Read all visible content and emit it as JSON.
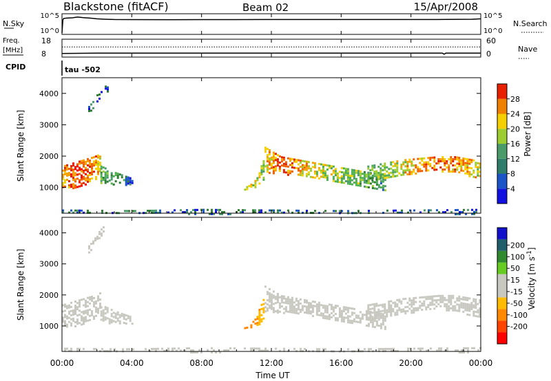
{
  "header": {
    "station": "Blackstone (fitACF)",
    "beam": "Beam 02",
    "date": "15/Apr/2008"
  },
  "noise_panel": {
    "left_label": "N.Sky",
    "left_top_tick": "10^5",
    "left_bottom_tick": "10^0",
    "right_label": "N.Search",
    "right_top_tick": "10^5",
    "right_bottom_tick": "10^0"
  },
  "freq_panel": {
    "left_label_1": "Freq.",
    "left_label_2": "[MHz]",
    "left_top_tick": "18",
    "left_bottom_tick": "8",
    "right_label": "Nave",
    "right_top_tick": "60",
    "right_bottom_tick": "0"
  },
  "cpid_panel": {
    "label": "CPID",
    "annotation": "tau -502"
  },
  "colors": {
    "power_scale": [
      "#1010e0",
      "#1a55c8",
      "#2e7d32",
      "#4a9a6a",
      "#4caf50",
      "#9ccc30",
      "#f4d000",
      "#f7a000",
      "#f06000",
      "#e02000",
      "#ff0000"
    ],
    "velocity_scale": [
      "#ff0000",
      "#ff4400",
      "#ff8800",
      "#ffbb00",
      "#c8c8c0",
      "#c8c8c0",
      "#66bb22",
      "#2f8a2f",
      "#1f5e6a",
      "#1111cc"
    ]
  },
  "chart_data": [
    {
      "type": "line",
      "name": "noise",
      "xlim": [
        0,
        24
      ],
      "y_scale": "log",
      "ylim": [
        1,
        100000
      ],
      "series": [
        {
          "name": "N.Sky",
          "style": "solid",
          "x": [
            0.0,
            0.05,
            0.1,
            0.3,
            0.6,
            0.9,
            1.2,
            1.5,
            1.8,
            2.0,
            2.5,
            3.0,
            4.0,
            6.0,
            8.0,
            10.0,
            12.0,
            14.0,
            16.0,
            18.0,
            20.0,
            22.0,
            23.5,
            24.0
          ],
          "y": [
            1,
            5000,
            12000,
            15000,
            18000,
            30000,
            20000,
            16000,
            12000,
            9000,
            7000,
            6000,
            5600,
            5500,
            5600,
            5700,
            5800,
            5800,
            5900,
            6000,
            5900,
            6200,
            7000,
            9000
          ]
        },
        {
          "name": "N.Search",
          "style": "dotted",
          "x": [],
          "y": []
        }
      ]
    },
    {
      "type": "line",
      "name": "frequency-nave",
      "xlim": [
        0,
        24
      ],
      "ylim_left": [
        8,
        18
      ],
      "ylim_right": [
        0,
        60
      ],
      "series": [
        {
          "name": "Freq.",
          "axis": "left",
          "style": "solid",
          "x": [
            0,
            2,
            4,
            6,
            8,
            10,
            12,
            14,
            16,
            18,
            20,
            21.8,
            21.9,
            22.0,
            24
          ],
          "y": [
            9.5,
            9.7,
            9.7,
            9.7,
            9.7,
            9.7,
            9.7,
            9.7,
            9.7,
            9.7,
            9.7,
            9.7,
            9.0,
            9.7,
            9.7
          ]
        },
        {
          "name": "Nave",
          "axis": "right",
          "style": "dotted",
          "x": [
            0,
            6,
            12,
            18,
            24
          ],
          "y": [
            35,
            35,
            35,
            35,
            35
          ]
        }
      ]
    },
    {
      "type": "heatmap",
      "name": "power",
      "ylabel": "Slant Range [km]",
      "xlim": [
        0,
        24
      ],
      "ylim": [
        180,
        4500
      ],
      "yticks": [
        1000,
        2000,
        3000,
        4000
      ],
      "colorbar_label": "Power [dB]",
      "colorbar_range": [
        0,
        32
      ],
      "colorbar_ticks": [
        4,
        8,
        12,
        16,
        20,
        24,
        28
      ],
      "features": [
        {
          "x": [
            0.0,
            0.6,
            1.2,
            1.8,
            2.2
          ],
          "y_low": [
            1000,
            1000,
            1100,
            1250,
            1400
          ],
          "y_high": [
            1700,
            1800,
            1900,
            2000,
            2100
          ],
          "power": [
            22,
            26,
            26,
            24,
            18
          ]
        },
        {
          "x": [
            2.2,
            2.6,
            3.0,
            3.5,
            4.0
          ],
          "y_low": [
            1100,
            1100,
            1100,
            1100,
            1100
          ],
          "y_high": [
            1700,
            1600,
            1500,
            1400,
            1300
          ],
          "power": [
            10,
            12,
            10,
            8,
            6
          ]
        },
        {
          "x": [
            1.5,
            1.8,
            2.0,
            2.3,
            2.6
          ],
          "y_low": [
            3400,
            3600,
            3800,
            4000,
            4100
          ],
          "y_high": [
            3600,
            3800,
            4000,
            4200,
            4300
          ],
          "power": [
            6,
            8,
            6,
            6,
            4
          ]
        },
        {
          "x": [
            10.2,
            10.6,
            11.0,
            11.3,
            11.6
          ],
          "y_low": [
            950,
            950,
            1000,
            1100,
            1300
          ],
          "y_high": [
            1000,
            1050,
            1200,
            1600,
            2000
          ],
          "power": [
            20,
            20,
            18,
            16,
            12
          ]
        },
        {
          "x": [
            11.6,
            12.5,
            13.5,
            14.5,
            15.5,
            16.5,
            17.5,
            18.5
          ],
          "y_low": [
            1500,
            1450,
            1400,
            1300,
            1200,
            1100,
            1000,
            900
          ],
          "y_high": [
            2300,
            2000,
            1900,
            1800,
            1700,
            1600,
            1500,
            1400
          ],
          "power": [
            20,
            24,
            22,
            18,
            16,
            14,
            12,
            10
          ]
        },
        {
          "x": [
            17.5,
            18.5,
            19.5,
            20.5,
            21.5,
            22.5,
            23.5,
            24.0
          ],
          "y_low": [
            1200,
            1300,
            1400,
            1500,
            1550,
            1500,
            1350,
            1250
          ],
          "y_high": [
            1700,
            1800,
            1900,
            1950,
            2000,
            2000,
            1900,
            1850
          ],
          "power": [
            12,
            14,
            18,
            22,
            24,
            22,
            20,
            18
          ]
        },
        {
          "x": [
            0.0,
            4.0,
            8.0,
            12.0,
            16.0,
            20.0,
            24.0
          ],
          "y_low": [
            180,
            180,
            180,
            180,
            180,
            180,
            180
          ],
          "y_high": [
            300,
            280,
            320,
            300,
            280,
            300,
            320
          ],
          "power": [
            6,
            6,
            6,
            6,
            6,
            6,
            6
          ]
        }
      ]
    },
    {
      "type": "heatmap",
      "name": "velocity",
      "xlabel": "Time UT",
      "ylabel": "Slant Range [km]",
      "xlim": [
        0,
        24
      ],
      "xticks": [
        "00:00",
        "04:00",
        "08:00",
        "12:00",
        "16:00",
        "20:00",
        "00:00"
      ],
      "ylim": [
        180,
        4500
      ],
      "yticks": [
        1000,
        2000,
        3000,
        4000
      ],
      "colorbar_label": "Velocity [m s^-1]",
      "colorbar_range": [
        -250,
        250
      ],
      "colorbar_ticks": [
        -200,
        -100,
        -50,
        -15,
        15,
        50,
        100,
        200
      ],
      "features": [
        {
          "x": [
            0.0,
            0.6,
            1.2,
            1.8,
            2.2
          ],
          "y_low": [
            1000,
            1000,
            1100,
            1250,
            1400
          ],
          "y_high": [
            1700,
            1800,
            1900,
            2000,
            2100
          ],
          "velocity": [
            0,
            0,
            5,
            0,
            0
          ]
        },
        {
          "x": [
            2.2,
            2.6,
            3.0,
            3.5,
            4.0
          ],
          "y_low": [
            1100,
            1100,
            1100,
            1100,
            1100
          ],
          "y_high": [
            1700,
            1600,
            1500,
            1400,
            1300
          ],
          "velocity": [
            0,
            0,
            0,
            0,
            0
          ]
        },
        {
          "x": [
            1.5,
            1.8,
            2.0,
            2.3,
            2.6
          ],
          "y_low": [
            3400,
            3600,
            3800,
            4000,
            4100
          ],
          "y_high": [
            3600,
            3800,
            4000,
            4200,
            4300
          ],
          "velocity": [
            0,
            0,
            0,
            0,
            0
          ]
        },
        {
          "x": [
            10.2,
            10.6,
            11.0,
            11.3,
            11.6
          ],
          "y_low": [
            950,
            950,
            1000,
            1100,
            1300
          ],
          "y_high": [
            1000,
            1050,
            1200,
            1600,
            2000
          ],
          "velocity": [
            -60,
            -70,
            -60,
            -40,
            -20
          ]
        },
        {
          "x": [
            11.6,
            12.5,
            13.5,
            14.5,
            15.5,
            16.5,
            17.5,
            18.5
          ],
          "y_low": [
            1500,
            1450,
            1400,
            1300,
            1200,
            1100,
            1000,
            900
          ],
          "y_high": [
            2300,
            2000,
            1900,
            1800,
            1700,
            1600,
            1500,
            1400
          ],
          "velocity": [
            0,
            0,
            0,
            0,
            0,
            0,
            0,
            0
          ]
        },
        {
          "x": [
            17.5,
            18.5,
            19.5,
            20.5,
            21.5,
            22.5,
            23.5,
            24.0
          ],
          "y_low": [
            1200,
            1300,
            1400,
            1500,
            1550,
            1500,
            1350,
            1250
          ],
          "y_high": [
            1700,
            1800,
            1900,
            1950,
            2000,
            2000,
            1900,
            1850
          ],
          "velocity": [
            0,
            0,
            0,
            0,
            0,
            0,
            0,
            0
          ]
        },
        {
          "x": [
            0.0,
            4.0,
            8.0,
            12.0,
            16.0,
            20.0,
            24.0
          ],
          "y_low": [
            180,
            180,
            180,
            180,
            180,
            180,
            180
          ],
          "y_high": [
            300,
            280,
            320,
            300,
            280,
            300,
            320
          ],
          "velocity": [
            30,
            20,
            30,
            30,
            20,
            30,
            20
          ]
        }
      ]
    }
  ]
}
